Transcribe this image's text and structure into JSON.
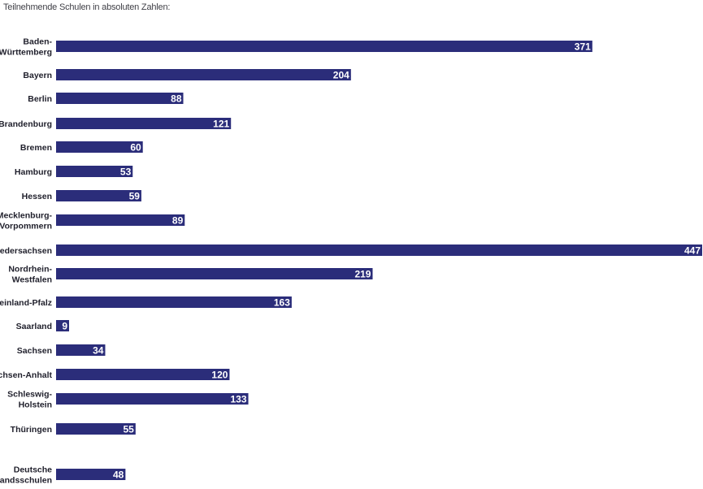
{
  "chart_data": {
    "type": "bar",
    "orientation": "horizontal",
    "title": "Teilnehmende Schulen in absoluten Zahlen:",
    "categories": [
      [
        "Baden-",
        "Württemberg"
      ],
      [
        "Bayern"
      ],
      [
        "Berlin"
      ],
      [
        "Brandenburg"
      ],
      [
        "Bremen"
      ],
      [
        "Hamburg"
      ],
      [
        "Hessen"
      ],
      [
        "Mecklenburg-",
        "Vorpommern"
      ],
      [
        "Niedersachsen"
      ],
      [
        "Nordrhein-",
        "Westfalen"
      ],
      [
        "Rheinland-Pfalz"
      ],
      [
        "Saarland"
      ],
      [
        "Sachsen"
      ],
      [
        "Sachsen-Anhalt"
      ],
      [
        "Schleswig-",
        "Holstein"
      ],
      [
        "Thüringen"
      ],
      [
        "Deutsche",
        "Auslandsschulen"
      ]
    ],
    "values": [
      371,
      204,
      88,
      121,
      60,
      53,
      59,
      89,
      447,
      219,
      163,
      9,
      34,
      120,
      133,
      55,
      48
    ],
    "bar_color": "#2b2d7a",
    "label_color": "#ffffff",
    "grid": false,
    "legend": "none"
  }
}
